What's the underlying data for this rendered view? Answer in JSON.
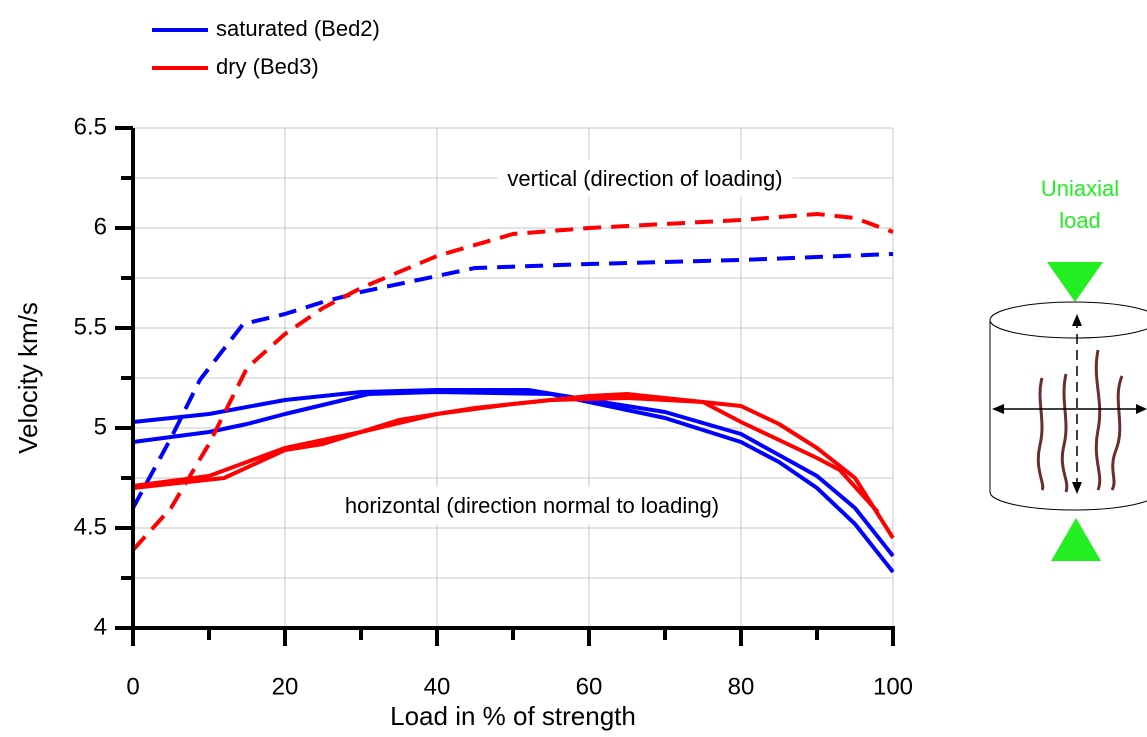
{
  "chart_data": {
    "type": "line",
    "x_label": "Load in % of strength",
    "y_label": "Velocity km/s",
    "xlim": [
      0,
      100
    ],
    "xticks": [
      0,
      20,
      40,
      60,
      80,
      100
    ],
    "xminorticks": [
      10,
      30,
      50,
      70,
      90
    ],
    "ylim": [
      4,
      6.5
    ],
    "yticks": [
      4,
      4.5,
      5,
      5.5,
      6,
      6.5
    ],
    "yminorticks": [
      4.25,
      4.75,
      5.25,
      5.75,
      6.25
    ],
    "grid": true,
    "annotations": [
      "vertical (direction of loading)",
      "horizontal (direction normal to loading)"
    ],
    "diagram_label": [
      "Uniaxial",
      "load"
    ],
    "series": [
      {
        "name": "saturated (Bed2)",
        "color": "#0000ff",
        "lines": [
          {
            "dashed": true,
            "x": [
              0,
              5,
              8.8,
              14.5,
              20,
              25,
              30,
              40,
              45,
              60,
              80,
              100
            ],
            "values": [
              4.6,
              4.95,
              5.24,
              5.52,
              5.57,
              5.63,
              5.68,
              5.76,
              5.8,
              5.82,
              5.84,
              5.87
            ]
          },
          {
            "dashed": false,
            "x": [
              0,
              10,
              20,
              30,
              40,
              52,
              60,
              70,
              80,
              90,
              95,
              100
            ],
            "values": [
              5.03,
              5.07,
              5.14,
              5.18,
              5.19,
              5.19,
              5.14,
              5.08,
              4.97,
              4.76,
              4.6,
              4.36
            ]
          },
          {
            "dashed": false,
            "x": [
              0,
              10,
              15,
              20,
              31,
              40,
              55,
              60,
              70,
              80,
              85,
              90,
              95,
              100
            ],
            "values": [
              4.93,
              4.98,
              5.02,
              5.07,
              5.17,
              5.18,
              5.17,
              5.13,
              5.05,
              4.93,
              4.83,
              4.7,
              4.52,
              4.28
            ]
          }
        ]
      },
      {
        "name": "dry (Bed3)",
        "color": "#ff0000",
        "lines": [
          {
            "dashed": true,
            "x": [
              0,
              5,
              10,
              15,
              20,
              25,
              30,
              40,
              50,
              60,
              70,
              80,
              90,
              95,
              100
            ],
            "values": [
              4.39,
              4.6,
              4.92,
              5.3,
              5.47,
              5.6,
              5.7,
              5.86,
              5.97,
              6.0,
              6.02,
              6.04,
              6.07,
              6.05,
              5.98
            ]
          },
          {
            "dashed": false,
            "x": [
              0,
              10,
              20,
              30,
              40,
              50,
              60,
              65,
              70,
              80,
              85,
              90,
              95,
              100
            ],
            "values": [
              4.71,
              4.76,
              4.9,
              4.98,
              5.07,
              5.12,
              5.16,
              5.17,
              5.15,
              5.11,
              5.02,
              4.9,
              4.75,
              4.45
            ]
          },
          {
            "dashed": false,
            "x": [
              0,
              12,
              20,
              25,
              35,
              45,
              55,
              65,
              75,
              80,
              90,
              93,
              98
            ],
            "values": [
              4.7,
              4.75,
              4.89,
              4.92,
              5.04,
              5.1,
              5.14,
              5.15,
              5.13,
              5.03,
              4.85,
              4.79,
              4.58
            ]
          }
        ]
      }
    ]
  }
}
